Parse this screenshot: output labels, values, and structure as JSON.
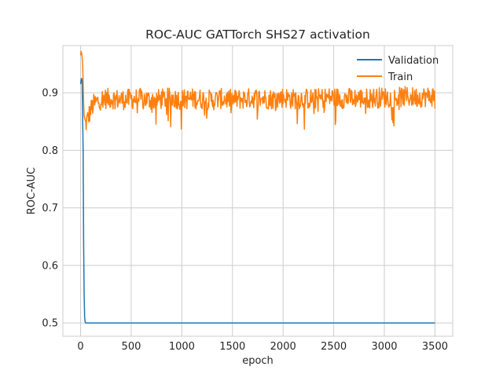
{
  "chart_data": {
    "type": "line",
    "title": "ROC-AUC GATTorch SHS27 activation",
    "xlabel": "epoch",
    "ylabel": "ROC-AUC",
    "xlim": [
      -175,
      3675
    ],
    "ylim": [
      0.477,
      0.982
    ],
    "xticks": [
      0,
      500,
      1000,
      1500,
      2000,
      2500,
      3000,
      3500
    ],
    "xtick_labels": [
      "0",
      "500",
      "1000",
      "1500",
      "2000",
      "2500",
      "3000",
      "3500"
    ],
    "yticks": [
      0.5,
      0.6,
      0.7,
      0.8,
      0.9
    ],
    "ytick_labels": [
      "0.5",
      "0.6",
      "0.7",
      "0.8",
      "0.9"
    ],
    "grid": true,
    "legend_position": "top-right",
    "series": [
      {
        "name": "Validation",
        "color": "#1f77b4",
        "x": [
          0,
          5,
          10,
          15,
          20,
          25,
          30,
          35,
          40,
          45,
          50,
          3500
        ],
        "y": [
          0.915,
          0.922,
          0.925,
          0.92,
          0.86,
          0.8,
          0.64,
          0.55,
          0.51,
          0.502,
          0.5,
          0.5
        ]
      },
      {
        "name": "Train",
        "color": "#ff7f0e",
        "x": [
          0,
          5,
          10,
          15,
          20,
          25,
          30,
          35,
          40,
          50,
          60,
          70,
          80,
          100,
          130,
          170,
          220,
          300,
          400,
          500,
          600,
          700,
          800,
          900,
          1000,
          1100,
          1200,
          1300,
          1400,
          1500,
          1600,
          1700,
          1800,
          1900,
          2000,
          2100,
          2200,
          2300,
          2400,
          2500,
          2600,
          2700,
          2800,
          2900,
          3000,
          3100,
          3200,
          3300,
          3400,
          3500
        ],
        "y": [
          0.965,
          0.972,
          0.969,
          0.962,
          0.95,
          0.92,
          0.88,
          0.86,
          0.85,
          0.845,
          0.85,
          0.855,
          0.86,
          0.87,
          0.88,
          0.885,
          0.89,
          0.89,
          0.888,
          0.889,
          0.89,
          0.887,
          0.889,
          0.891,
          0.888,
          0.89,
          0.889,
          0.887,
          0.89,
          0.888,
          0.889,
          0.891,
          0.89,
          0.889,
          0.892,
          0.889,
          0.89,
          0.889,
          0.891,
          0.892,
          0.89,
          0.891,
          0.89,
          0.891,
          0.892,
          0.891,
          0.893,
          0.892,
          0.893,
          0.894
        ],
        "noise_amplitude": 0.018
      }
    ]
  }
}
